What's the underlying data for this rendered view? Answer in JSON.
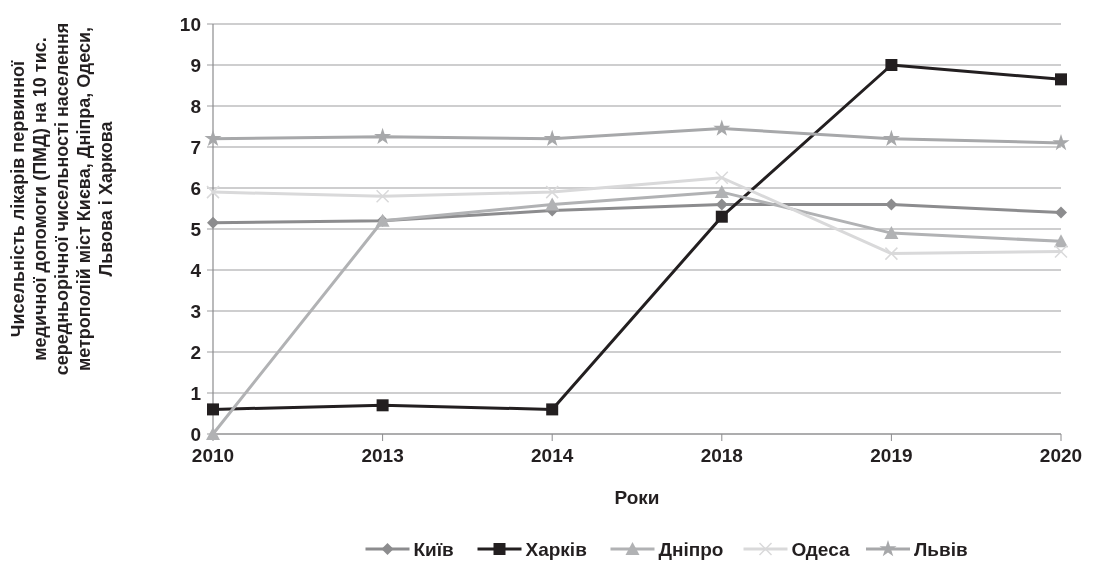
{
  "chart_data": {
    "type": "line",
    "xlabel": "Роки",
    "ylabel": "Чисельність лікарів первинної медичної допомоги (ПМД) на 10 тис. середньорічної чисельності населення метрополій міст Києва, Дніпра, Одеси, Львова і Харкова",
    "categories": [
      "2010",
      "2013",
      "2014",
      "2018",
      "2019",
      "2020"
    ],
    "ylim": [
      0,
      10
    ],
    "yticks": [
      0,
      1,
      2,
      3,
      4,
      5,
      6,
      7,
      8,
      9,
      10
    ],
    "grid": "y",
    "legend": "bottom",
    "series": [
      {
        "name": "Київ",
        "color": "#8c8c8e",
        "marker": "diamond",
        "values": [
          5.15,
          5.2,
          5.45,
          5.6,
          5.6,
          5.4
        ]
      },
      {
        "name": "Харків",
        "color": "#231f20",
        "marker": "square",
        "values": [
          0.6,
          0.7,
          0.6,
          5.3,
          9.0,
          8.65
        ]
      },
      {
        "name": "Дніпро",
        "color": "#b1b2b4",
        "marker": "triangle",
        "values": [
          0,
          5.2,
          5.6,
          5.9,
          4.9,
          4.7
        ]
      },
      {
        "name": "Одеса",
        "color": "#d9d9da",
        "marker": "cross",
        "values": [
          5.9,
          5.8,
          5.9,
          6.25,
          4.4,
          4.45
        ]
      },
      {
        "name": "Львів",
        "color": "#a7a8aa",
        "marker": "star",
        "values": [
          7.2,
          7.25,
          7.2,
          7.45,
          7.2,
          7.1
        ]
      }
    ]
  }
}
